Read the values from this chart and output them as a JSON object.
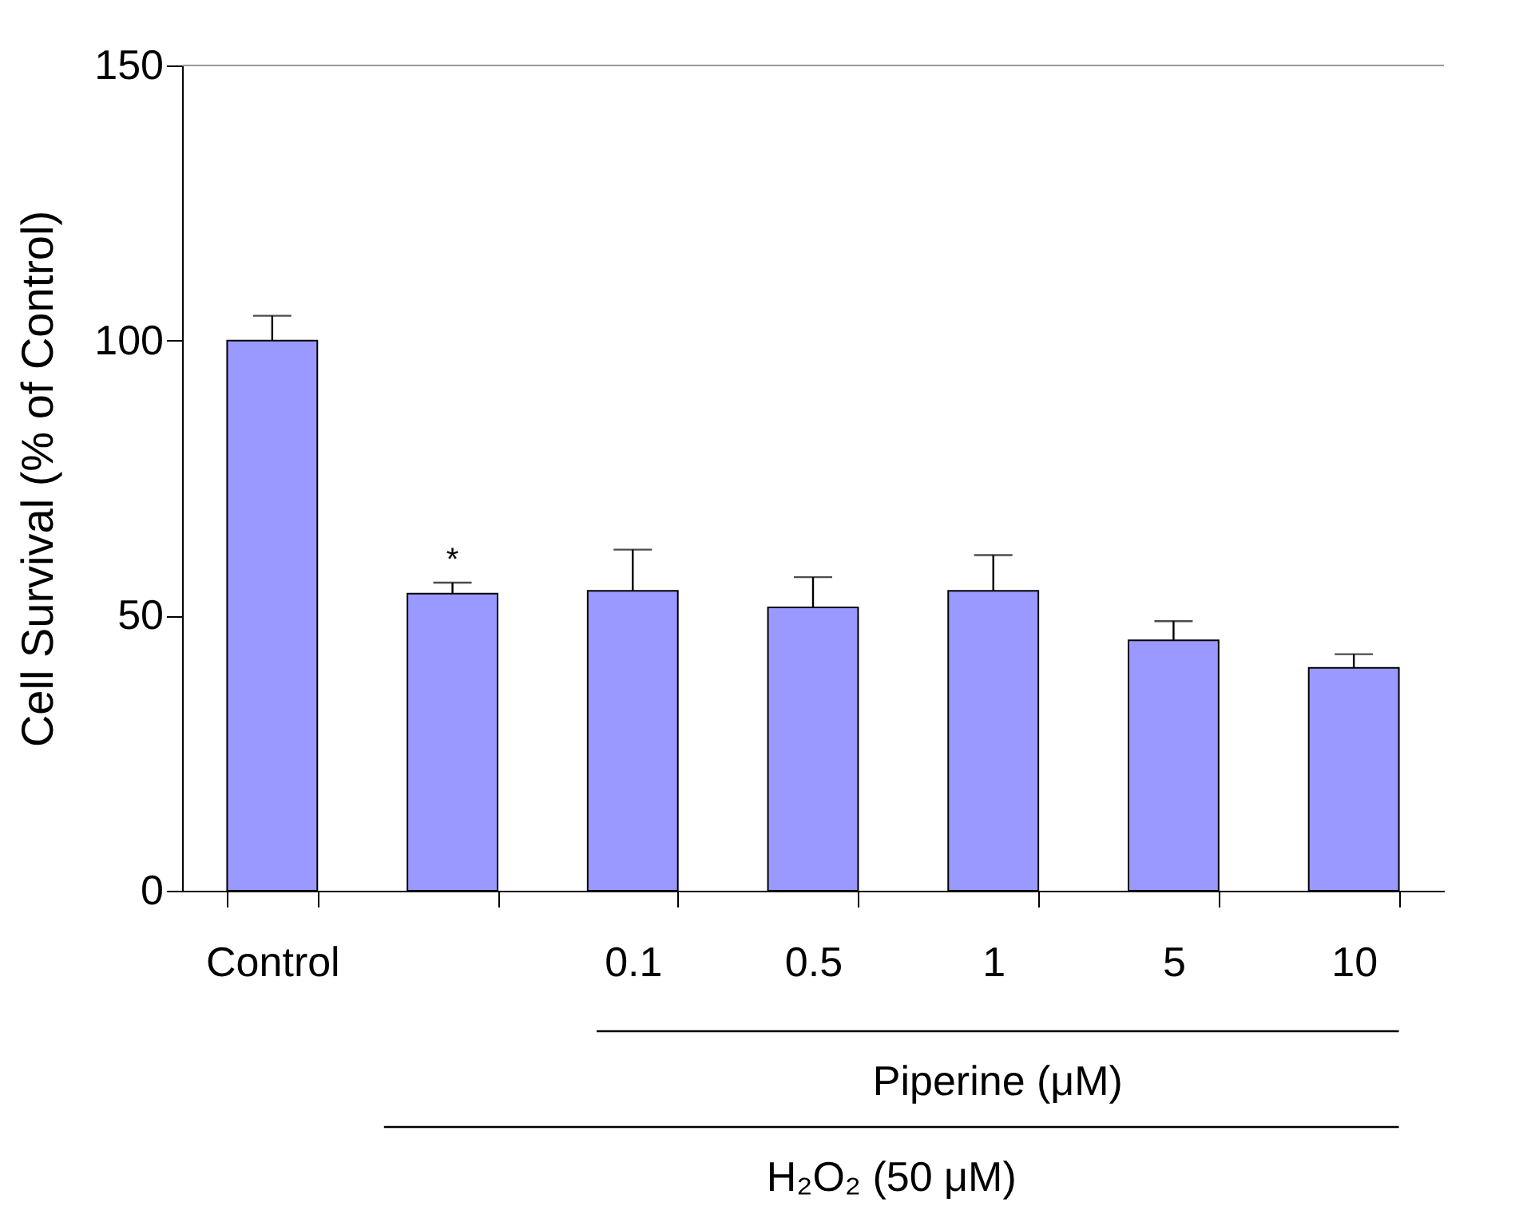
{
  "chart_data": {
    "type": "bar",
    "ylabel": "Cell Survival (% of Control)",
    "categories": [
      "Control",
      null,
      "0.1",
      "0.5",
      "1",
      "5",
      "10"
    ],
    "values": [
      100,
      54,
      54.5,
      51.5,
      54.5,
      45.5,
      40.5
    ],
    "errors": [
      [
        100,
        104.5
      ],
      [
        54,
        56
      ],
      [
        54.5,
        62
      ],
      [
        51.5,
        57
      ],
      [
        54.5,
        61
      ],
      [
        45.5,
        49
      ],
      [
        40.5,
        43
      ]
    ],
    "value_labels": [
      null,
      "*",
      null,
      null,
      null,
      null,
      null
    ],
    "color": "#9999ff",
    "ylim": [
      0,
      150
    ],
    "yticks": [
      0,
      50,
      100,
      150
    ],
    "annotations": [
      "Piperine (μM)",
      "H₂O₂ (50 μM)"
    ]
  }
}
